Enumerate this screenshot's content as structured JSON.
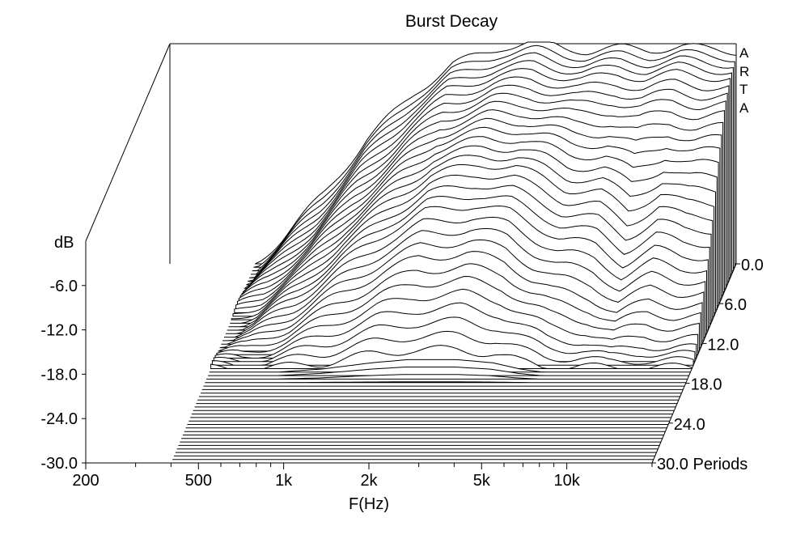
{
  "chart_data": {
    "type": "waterfall",
    "title": "Burst Decay",
    "xlabel": "F(Hz)",
    "ylabel": "dB",
    "zlabel": "Periods",
    "x_scale": "log",
    "xlim": [
      200,
      20000
    ],
    "ylim": [
      -30,
      0
    ],
    "zlim": [
      0,
      30
    ],
    "x_ticks": [
      200,
      500,
      1000,
      2000,
      5000,
      10000
    ],
    "x_tick_labels": [
      "200",
      "500",
      "1k",
      "2k",
      "5k",
      "10k"
    ],
    "y_ticks": [
      -6,
      -12,
      -18,
      -24,
      -30
    ],
    "y_tick_labels": [
      "-6.0",
      "-12.0",
      "-18.0",
      "-24.0",
      "-30.0"
    ],
    "z_ticks": [
      0,
      6,
      12,
      18,
      24,
      30
    ],
    "z_tick_labels": [
      "0.0",
      "6.0",
      "12.0",
      "18.0",
      "24.0",
      "30.0 Periods"
    ],
    "watermark": [
      "A",
      "R",
      "T",
      "A"
    ],
    "slice_count": 58,
    "series": [
      {
        "periods": 0,
        "x": [
          400,
          500,
          700,
          1000,
          1500,
          2000,
          3000,
          4000,
          5000,
          6000,
          8000,
          10000,
          13000,
          16000,
          20000
        ],
        "y": [
          -30,
          -26.5,
          -20.5,
          -13,
          -6.5,
          -3,
          -0.6,
          0,
          -0.8,
          -1.2,
          -0.8,
          -1,
          -0.6,
          -1,
          -1.2
        ]
      },
      {
        "periods": 2,
        "x": [
          400,
          500,
          700,
          1000,
          1500,
          2000,
          3000,
          4000,
          5000,
          6000,
          8000,
          10000,
          13000,
          16000,
          20000
        ],
        "y": [
          -30,
          -27,
          -21.5,
          -14.5,
          -8,
          -4.5,
          -2.5,
          -2,
          -2.6,
          -3,
          -2.4,
          -2.8,
          -2.2,
          -2.6,
          -2.8
        ]
      },
      {
        "periods": 4,
        "x": [
          400,
          500,
          700,
          1000,
          1500,
          2000,
          3000,
          4000,
          5000,
          6000,
          8000,
          10000,
          13000,
          16000,
          20000
        ],
        "y": [
          -30,
          -27.5,
          -22.5,
          -16,
          -10,
          -6.5,
          -4.6,
          -4.4,
          -5,
          -5.6,
          -5.2,
          -6,
          -5.2,
          -5.8,
          -5.6
        ]
      },
      {
        "periods": 6,
        "x": [
          400,
          500,
          700,
          1000,
          1500,
          2000,
          3000,
          4000,
          5000,
          6000,
          8000,
          10000,
          13000,
          16000,
          20000
        ],
        "y": [
          -30,
          -28,
          -23.5,
          -17.5,
          -12,
          -8.5,
          -7,
          -7,
          -8,
          -9,
          -9,
          -11,
          -9,
          -10,
          -10
        ]
      },
      {
        "periods": 8,
        "x": [
          400,
          500,
          700,
          1000,
          1500,
          2000,
          3000,
          4000,
          5000,
          6000,
          8000,
          10000,
          13000,
          16000,
          20000
        ],
        "y": [
          -30,
          -28.5,
          -24.5,
          -19,
          -14,
          -11,
          -9.5,
          -10,
          -11.5,
          -13,
          -13.5,
          -16,
          -13.5,
          -15,
          -15
        ]
      },
      {
        "periods": 10,
        "x": [
          400,
          500,
          700,
          1000,
          1500,
          2000,
          3000,
          4000,
          5000,
          6000,
          8000,
          10000,
          13000,
          16000,
          20000
        ],
        "y": [
          -30,
          -29,
          -25.5,
          -21,
          -16.5,
          -14,
          -13,
          -14,
          -16,
          -17.5,
          -18.5,
          -21,
          -19,
          -20,
          -20
        ]
      },
      {
        "periods": 12,
        "x": [
          400,
          500,
          700,
          1000,
          1500,
          2000,
          3000,
          4000,
          5000,
          6000,
          8000,
          10000,
          13000,
          16000,
          20000
        ],
        "y": [
          -30,
          -29.5,
          -27,
          -23.5,
          -20,
          -18,
          -17.5,
          -18.5,
          -21,
          -22.5,
          -23.5,
          -25.5,
          -24,
          -24.5,
          -24.5
        ]
      },
      {
        "periods": 14,
        "x": [
          400,
          500,
          700,
          1000,
          1500,
          2000,
          3000,
          4000,
          5000,
          6000,
          8000,
          10000,
          13000,
          16000,
          20000
        ],
        "y": [
          -30,
          -30,
          -28.5,
          -26.5,
          -24,
          -23,
          -22.5,
          -23.5,
          -25.5,
          -27,
          -27.5,
          -29,
          -28,
          -28.5,
          -28.5
        ]
      },
      {
        "periods": 16,
        "x": [
          400,
          500,
          700,
          1000,
          1500,
          2000,
          3000,
          4000,
          5000,
          6000,
          8000,
          10000,
          13000,
          16000,
          20000
        ],
        "y": [
          -30,
          -30,
          -30,
          -29.5,
          -28.5,
          -28,
          -28,
          -28.5,
          -29.5,
          -30,
          -30,
          -30,
          -30,
          -30,
          -30
        ]
      },
      {
        "periods": 18,
        "x": [
          400,
          20000
        ],
        "y": [
          -30,
          -30
        ]
      },
      {
        "periods": 30,
        "x": [
          400,
          20000
        ],
        "y": [
          -30,
          -30
        ]
      }
    ]
  }
}
